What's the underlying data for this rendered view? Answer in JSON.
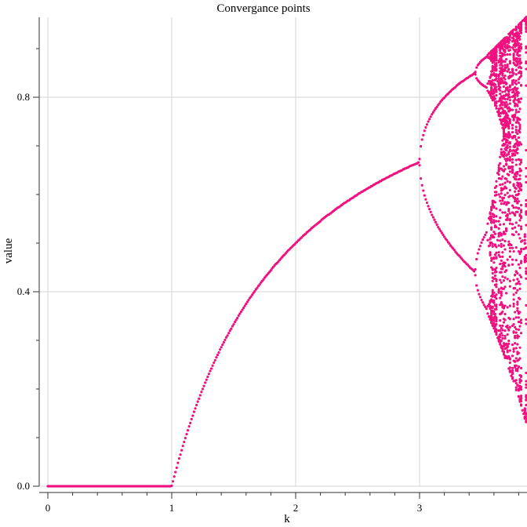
{
  "chart_data": {
    "type": "scatter",
    "title": "Convergance points",
    "xlabel": "k",
    "ylabel": "value",
    "xlim": [
      0,
      3.88
    ],
    "ylim": [
      0,
      0.965
    ],
    "xticks": [
      0,
      1,
      2,
      3
    ],
    "xtick_labels": [
      "0",
      "1",
      "2",
      "3"
    ],
    "yticks": [
      0.0,
      0.4,
      0.8
    ],
    "ytick_labels": [
      "0.0",
      "0.4",
      "0.8"
    ],
    "grid": true,
    "legend": "none",
    "series": [
      {
        "color": "#f0107f",
        "description_of_points": "logistic map attractor values x for growth rate k (k from 0 to about 3.88, step 0.01)"
      }
    ]
  }
}
